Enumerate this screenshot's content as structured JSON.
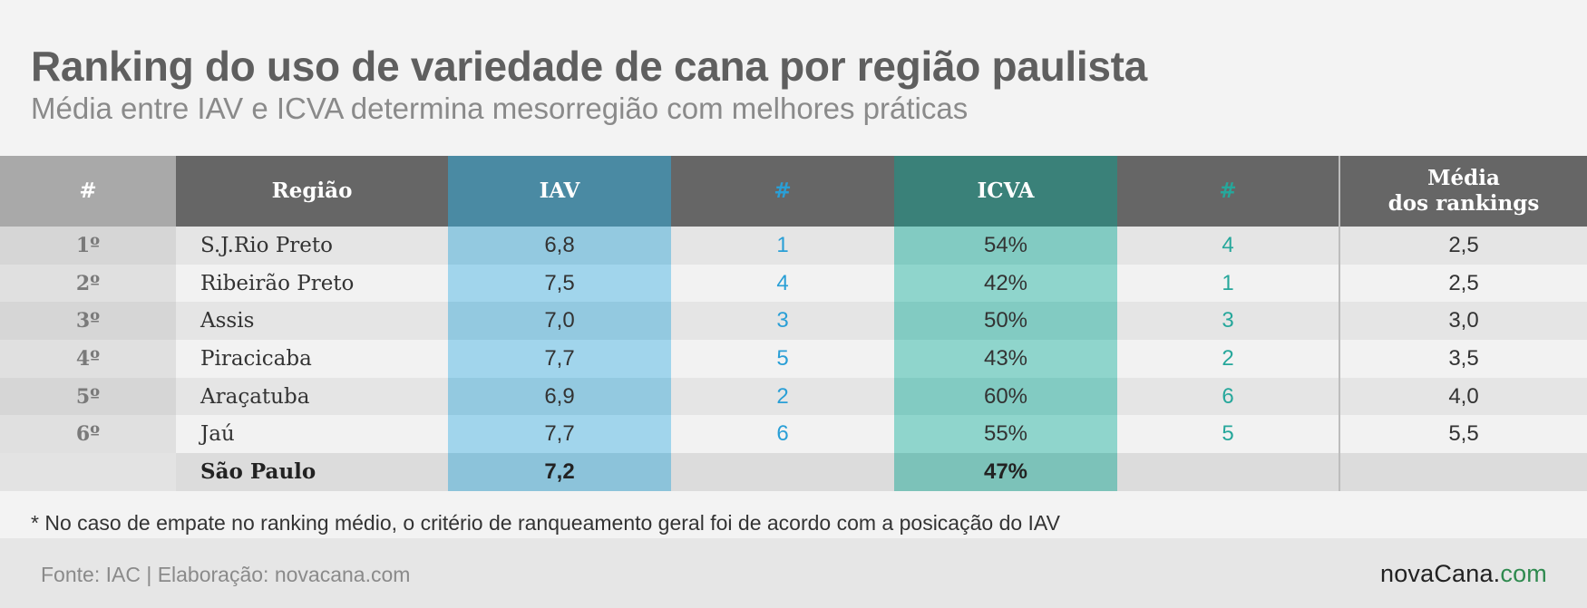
{
  "title": "Ranking do uso de variedade de cana por região paulista",
  "subtitle": "Média entre IAV e ICVA determina mesorregião com melhores práticas",
  "chart_data": {
    "type": "table",
    "columns": [
      "#",
      "Região",
      "IAV",
      "#",
      "ICVA",
      "#",
      "Média\ndos rankings"
    ],
    "rows": [
      [
        "1º",
        "S.J.Rio Preto",
        "6,8",
        "1",
        "54%",
        "4",
        "2,5"
      ],
      [
        "2º",
        "Ribeirão Preto",
        "7,5",
        "4",
        "42%",
        "1",
        "2,5"
      ],
      [
        "3º",
        "Assis",
        "7,0",
        "3",
        "50%",
        "3",
        "3,0"
      ],
      [
        "4º",
        "Piracicaba",
        "7,7",
        "5",
        "43%",
        "2",
        "3,5"
      ],
      [
        "5º",
        "Araçatuba",
        "6,9",
        "2",
        "60%",
        "6",
        "4,0"
      ],
      [
        "6º",
        "Jaú",
        "7,7",
        "6",
        "55%",
        "5",
        "5,5"
      ]
    ],
    "total_row": [
      "",
      "São Paulo",
      "7,2",
      "",
      "47%",
      "",
      ""
    ]
  },
  "note": "* No caso de empate no ranking médio, o critério de ranqueamento geral foi de acordo com a posicação do IAV",
  "source": "Fonte: IAC | Elaboração: novacana.com",
  "logo": {
    "part1": "novaCana.",
    "part2": "com"
  },
  "colors": {
    "iav_header": "#4a8aa3",
    "icva_header": "#3a8179",
    "iav_rank_text": "#2a9fd6",
    "icva_rank_text": "#26a79b",
    "logo_accent": "#2f8a4f"
  }
}
